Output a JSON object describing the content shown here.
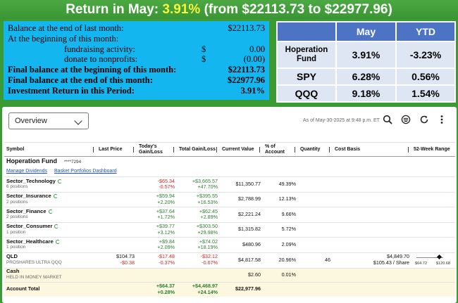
{
  "banner": {
    "prefix": "Return in May:",
    "highlight": "3.91%",
    "suffix": "(from $22113.73 to $22977.96)"
  },
  "balance": [
    {
      "label": "Balance at the end of last month:",
      "cur": "",
      "value": "$22113.73",
      "bold": false,
      "indent": false
    },
    {
      "label": "At the beginning of this month:",
      "cur": "",
      "value": "",
      "bold": false,
      "indent": false
    },
    {
      "label": "fundraising activity:",
      "cur": "$",
      "value": "0.00",
      "bold": false,
      "indent": true
    },
    {
      "label": "donate to nonprofits:",
      "cur": "$",
      "value": "(0.00)",
      "bold": false,
      "indent": true
    },
    {
      "label": "Final balance at the beginning of this month:",
      "cur": "",
      "value": "$22113.73",
      "bold": true,
      "indent": false
    },
    {
      "label": "Final balance at the end of this month:",
      "cur": "",
      "value": "$22977.96",
      "bold": true,
      "indent": false
    },
    {
      "label": "Investment Return in this Period:",
      "cur": "",
      "value": "3.91%",
      "bold": true,
      "indent": false
    }
  ],
  "comparison": {
    "headers": [
      "May",
      "YTD"
    ],
    "rows": [
      {
        "name": "Hoperation Fund",
        "may": "3.91%",
        "ytd": "-3.23%"
      },
      {
        "name": "SPY",
        "may": "6.28%",
        "ytd": "0.56%"
      },
      {
        "name": "QQQ",
        "may": "9.18%",
        "ytd": "1.54%"
      }
    ]
  },
  "toolbar": {
    "view_select": "Overview",
    "as_of": "As of May-30-2025 at 9:48 p.m. ET"
  },
  "columns": [
    "Symbol",
    "Last Price",
    "Today's Gain/Loss",
    "Total Gain/Loss",
    "Current Value",
    "% of Account",
    "Quantity",
    "Cost Basis",
    "52-Week Range"
  ],
  "fund": {
    "name": "Hoperation Fund",
    "account": "****7294",
    "links": [
      "Manage Dividends",
      "Basket Portfolios Dashboard"
    ]
  },
  "sectors": [
    {
      "name": "Sector_Technology",
      "positions": "6 positions",
      "today": "-$65.34",
      "today_pct": "-0.57%",
      "total": "+$3,665.57",
      "total_pct": "+47.70%",
      "value": "$11,350.77",
      "pct": "49.39%"
    },
    {
      "name": "Sector_Insurance",
      "positions": "2 positions",
      "today": "+$59.94",
      "today_pct": "+2.20%",
      "total": "+$395.55",
      "total_pct": "+16.53%",
      "value": "$2,788.99",
      "pct": "12.13%"
    },
    {
      "name": "Sector_Finance",
      "positions": "2 positions",
      "today": "+$37.64",
      "today_pct": "+1.72%",
      "total": "+$62.45",
      "total_pct": "+2.89%",
      "value": "$2,221.24",
      "pct": "9.66%"
    },
    {
      "name": "Sector_Consumer",
      "positions": "1 position",
      "today": "+$39.77",
      "today_pct": "+3.12%",
      "total": "+$303.50",
      "total_pct": "+29.98%",
      "value": "$1,315.82",
      "pct": "5.72%"
    },
    {
      "name": "Sector_Healthcare",
      "positions": "1 position",
      "today": "+$9.84",
      "today_pct": "+2.09%",
      "total": "+$74.02",
      "total_pct": "+18.19%",
      "value": "$480.96",
      "pct": "2.09%"
    }
  ],
  "qld": {
    "symbol": "QLD",
    "desc": "PROSHARES ULTRA QQQ",
    "last": "$104.73",
    "last_chg": "-$0.38",
    "today": "-$17.48",
    "today_pct": "-0.37%",
    "total": "-$32.12",
    "total_pct": "-0.67%",
    "value": "$4,817.58",
    "pct": "20.96%",
    "qty": "46",
    "cost": "$4,849.70",
    "cost_share": "$105.43 / Share",
    "range_low": "$64.72",
    "range_high": "$120.68",
    "range_position": 0.71
  },
  "cash": {
    "label": "Cash",
    "sub": "HELD IN MONEY MARKET",
    "value": "$2.60",
    "pct": "0.01%"
  },
  "total": {
    "label": "Account Total",
    "today": "+$64.37",
    "today_pct": "+0.28%",
    "total": "+$4,468.97",
    "total_pct": "+24.14%",
    "value": "$22,977.96"
  },
  "colors": {
    "positive": "#2e7d32",
    "negative": "#c62828",
    "banner_highlight": "#f5f53a"
  }
}
